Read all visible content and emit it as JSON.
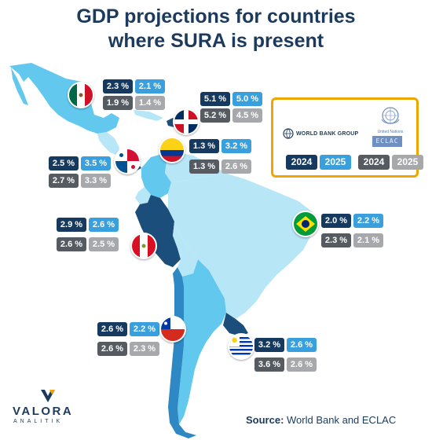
{
  "title": {
    "line1": "GDP projections for countries",
    "line2": "where SURA is present"
  },
  "legend": {
    "world_bank_label": "WORLD BANK GROUP",
    "un_label": "United Nations",
    "eclac_label": "ECLAC",
    "wb_years": [
      "2024",
      "2025"
    ],
    "eclac_years": [
      "2024",
      "2025"
    ]
  },
  "countries": {
    "mexico": {
      "wb_2024": "2.3 %",
      "wb_2025": "2.1 %",
      "eclac_2024": "1.9 %",
      "eclac_2025": "1.4 %",
      "flag_icon": "mexico-flag-icon"
    },
    "dominican_republic": {
      "wb_2024": "5.1 %",
      "wb_2025": "5.0 %",
      "eclac_2024": "5.2 %",
      "eclac_2025": "4.5 %",
      "flag_icon": "dominican-republic-flag-icon"
    },
    "colombia": {
      "wb_2024": "1.3 %",
      "wb_2025": "3.2 %",
      "eclac_2024": "1.3 %",
      "eclac_2025": "2.6 %",
      "flag_icon": "colombia-flag-icon"
    },
    "panama": {
      "wb_2024": "2.5 %",
      "wb_2025": "3.5 %",
      "eclac_2024": "2.7 %",
      "eclac_2025": "3.3 %",
      "flag_icon": "panama-flag-icon"
    },
    "peru": {
      "wb_2024": "2.9 %",
      "wb_2025": "2.6 %",
      "eclac_2024": "2.6 %",
      "eclac_2025": "2.5 %",
      "flag_icon": "peru-flag-icon"
    },
    "brazil": {
      "wb_2024": "2.0 %",
      "wb_2025": "2.2 %",
      "eclac_2024": "2.3 %",
      "eclac_2025": "2.1 %",
      "flag_icon": "brazil-flag-icon"
    },
    "chile": {
      "wb_2024": "2.6 %",
      "wb_2025": "2.2 %",
      "eclac_2024": "2.6 %",
      "eclac_2025": "2.3 %",
      "flag_icon": "chile-flag-icon"
    },
    "uruguay": {
      "wb_2024": "3.2 %",
      "wb_2025": "2.6 %",
      "eclac_2024": "3.6 %",
      "eclac_2025": "2.6 %",
      "flag_icon": "uruguay-flag-icon"
    }
  },
  "colors": {
    "navy": "#163a5f",
    "blue": "#3aa0dd",
    "dark_gray": "#555b61",
    "light_gray": "#a6a8ab",
    "accent_border": "#f0a500",
    "map_highlight": "#62c8ee",
    "map_light": "#b7e6f7",
    "map_dark": "#1b4e7a"
  },
  "source": {
    "label": "Source:",
    "text": " World Bank and ECLAC"
  },
  "brand": {
    "name": "VALORA",
    "sub": "ANALITIK",
    "icon": "valora-logo-icon"
  }
}
